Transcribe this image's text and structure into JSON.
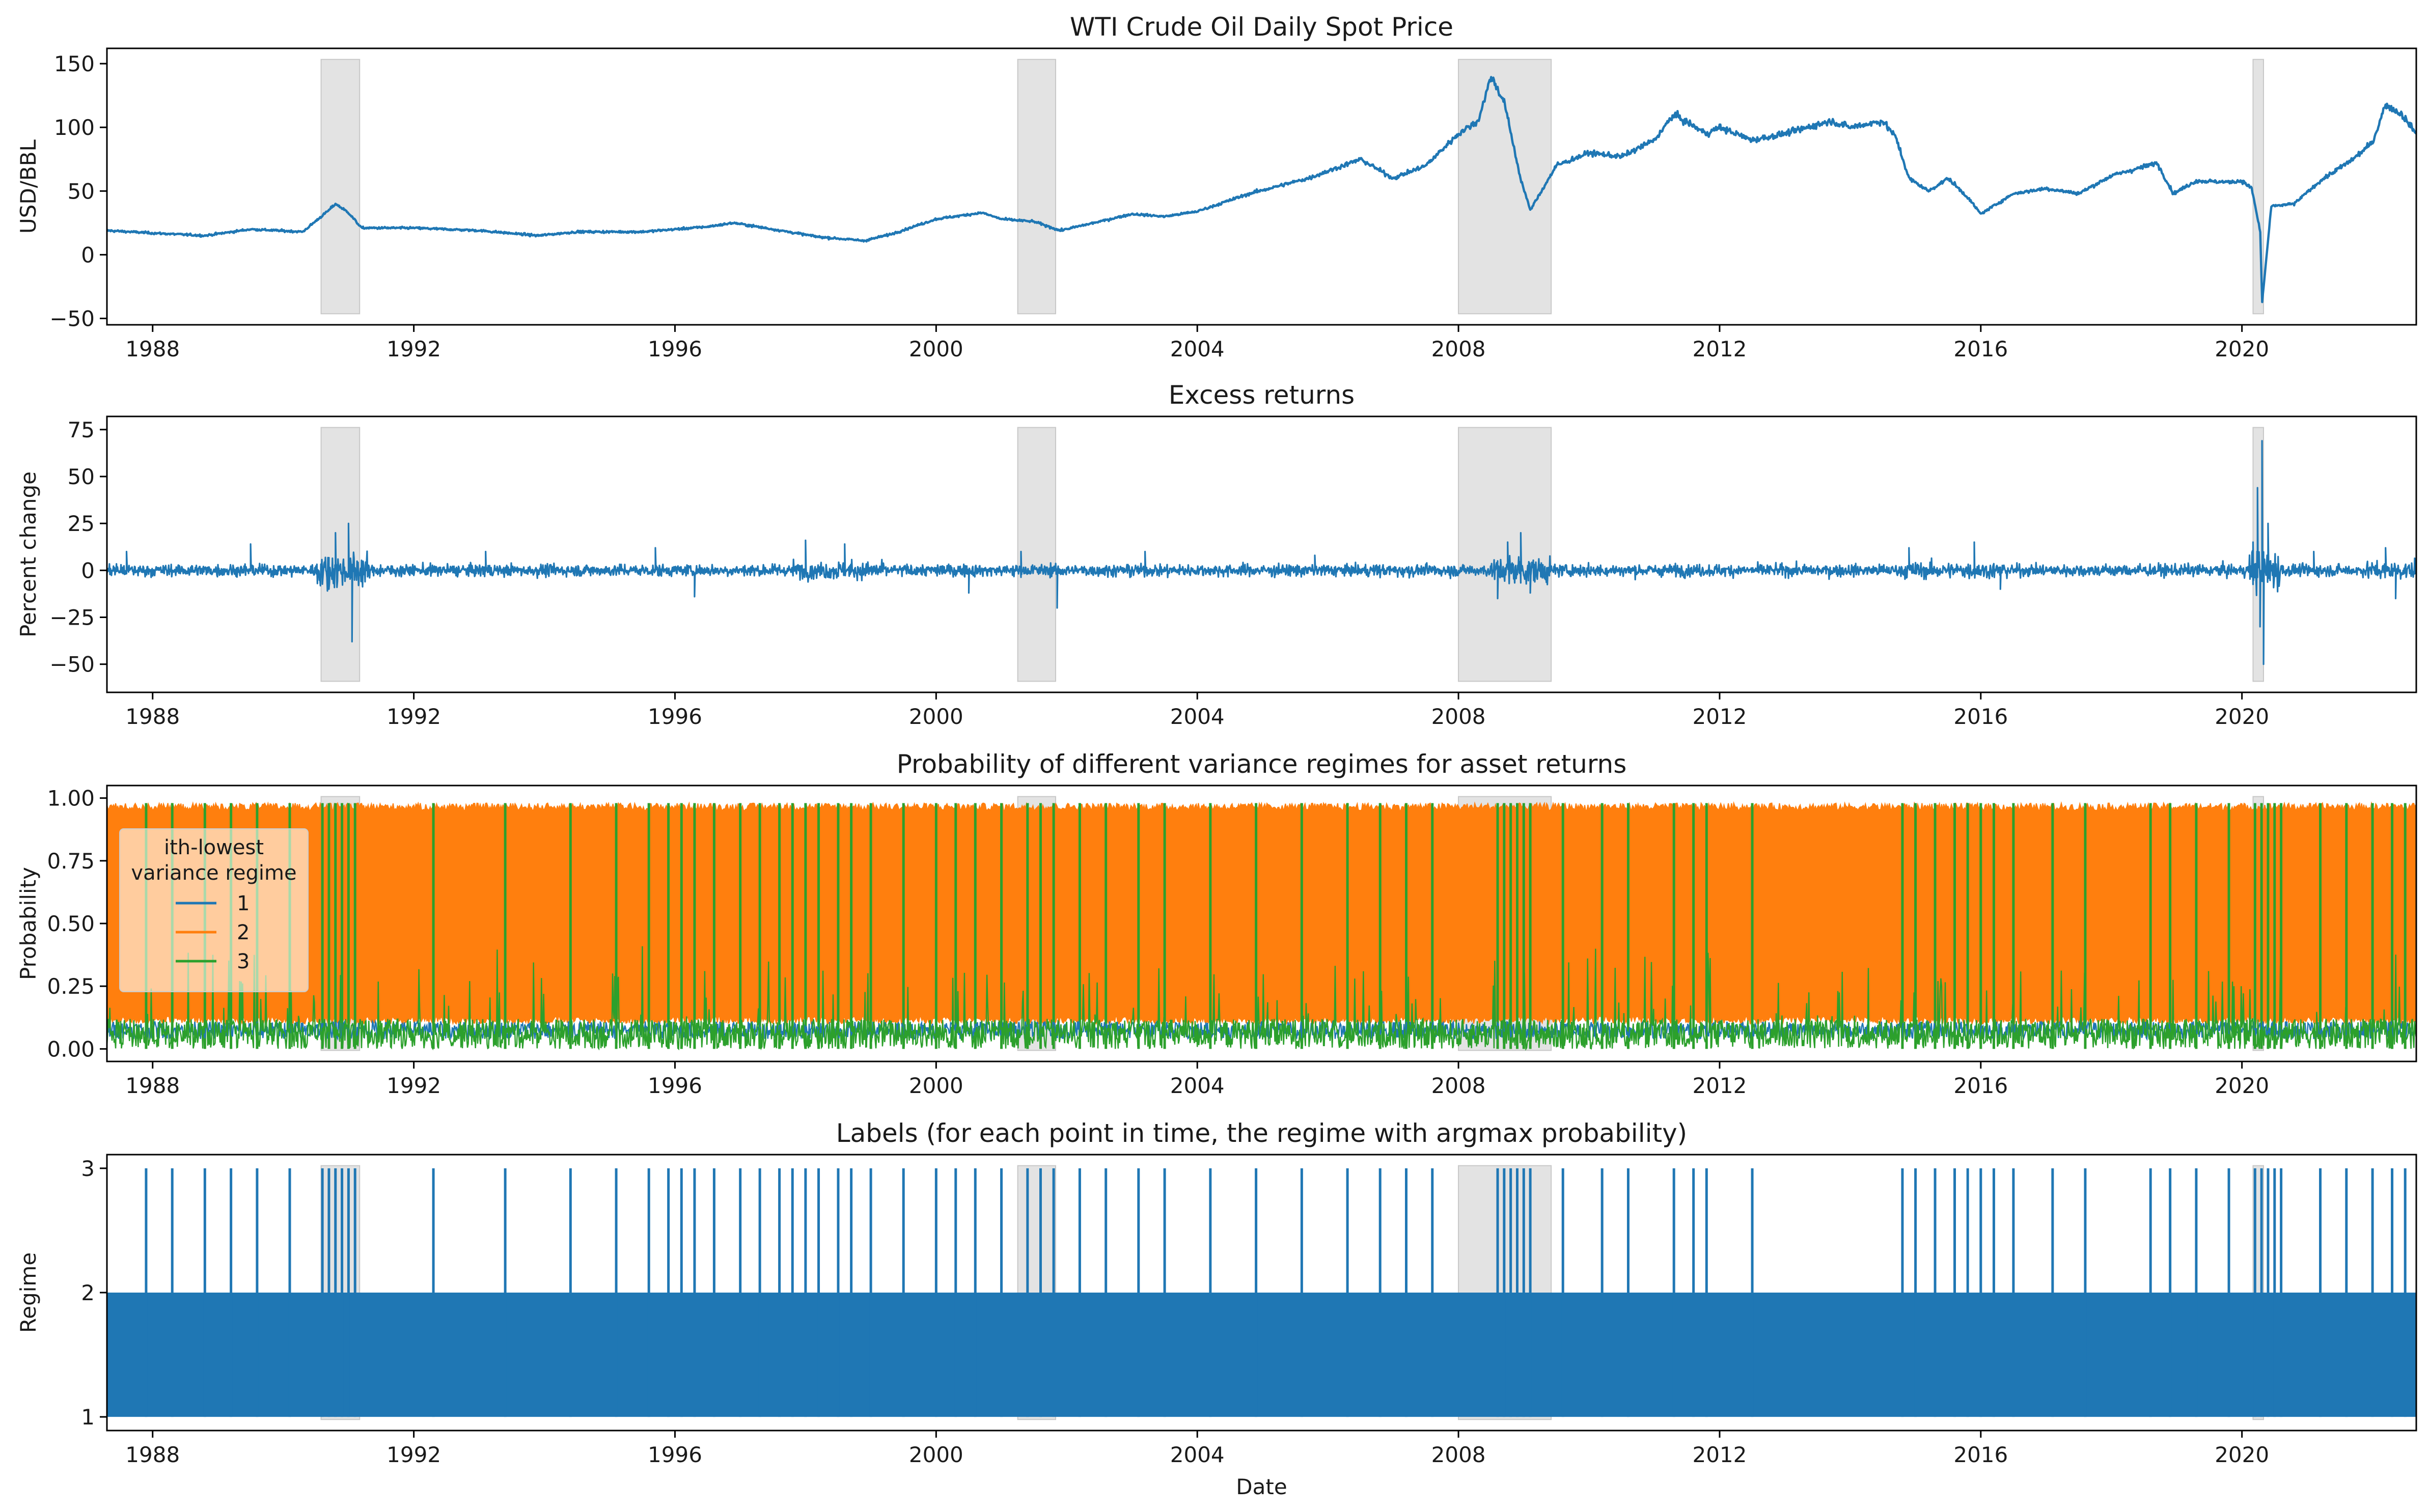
{
  "colors": {
    "series_1": "#1f77b4",
    "series_2": "#ff7f0e",
    "series_3": "#2ca02c",
    "recession": "#d9d9d9",
    "axis": "#000000",
    "background": "#ffffff"
  },
  "figure": {
    "x_axis_label": "Date"
  },
  "recessions": [
    {
      "start": 1990.58,
      "end": 1991.17
    },
    {
      "start": 2001.25,
      "end": 2001.83
    },
    {
      "start": 2008.0,
      "end": 2009.42
    },
    {
      "start": 2020.17,
      "end": 2020.33
    }
  ],
  "chart_data": [
    {
      "type": "line",
      "title": "WTI Crude Oil Daily Spot Price",
      "ylabel": "USD/BBL",
      "xlabel": "",
      "xlim": [
        1987.3,
        2022.67
      ],
      "ylim": [
        -55,
        162
      ],
      "xticks": [
        "1988",
        "1992",
        "1996",
        "2000",
        "2004",
        "2008",
        "2012",
        "2016",
        "2020"
      ],
      "yticks": [
        "−50",
        "0",
        "50",
        "100",
        "150"
      ],
      "grid": false,
      "x": [
        1987.3,
        1988.0,
        1988.8,
        1989.5,
        1990.3,
        1990.7,
        1990.8,
        1991.0,
        1991.2,
        1992.0,
        1993.0,
        1993.9,
        1994.5,
        1995.5,
        1996.5,
        1996.9,
        1997.5,
        1998.2,
        1998.9,
        1999.3,
        2000.0,
        2000.7,
        2001.0,
        2001.5,
        2001.9,
        2002.5,
        2003.0,
        2003.5,
        2004.0,
        2004.8,
        2005.7,
        2006.5,
        2007.0,
        2007.5,
        2008.0,
        2008.3,
        2008.5,
        2008.7,
        2008.95,
        2009.1,
        2009.5,
        2010.0,
        2010.5,
        2011.0,
        2011.3,
        2011.8,
        2012.0,
        2012.5,
        2013.0,
        2013.7,
        2014.0,
        2014.5,
        2014.7,
        2014.9,
        2015.2,
        2015.5,
        2015.8,
        2016.0,
        2016.5,
        2017.0,
        2017.5,
        2018.0,
        2018.7,
        2018.95,
        2019.3,
        2019.8,
        2020.0,
        2020.15,
        2020.28,
        2020.31,
        2020.45,
        2020.8,
        2021.2,
        2021.7,
        2022.0,
        2022.2,
        2022.45,
        2022.67
      ],
      "series": [
        {
          "values": [
            19,
            17,
            15,
            20,
            18,
            35,
            40,
            33,
            21,
            21,
            19,
            15,
            18,
            18,
            22,
            25,
            20,
            14,
            11,
            16,
            28,
            33,
            28,
            26,
            19,
            26,
            32,
            30,
            34,
            48,
            60,
            75,
            60,
            70,
            95,
            105,
            140,
            120,
            60,
            35,
            70,
            80,
            77,
            90,
            110,
            95,
            100,
            90,
            95,
            105,
            100,
            105,
            92,
            60,
            50,
            60,
            45,
            32,
            48,
            52,
            48,
            62,
            72,
            48,
            58,
            57,
            58,
            52,
            18,
            -37,
            38,
            40,
            58,
            75,
            88,
            118,
            110,
            95
          ]
        }
      ]
    },
    {
      "type": "line",
      "title": "Excess returns",
      "ylabel": "Percent change",
      "xlabel": "",
      "xlim": [
        1987.3,
        2022.67
      ],
      "ylim": [
        -65,
        82
      ],
      "xticks": [
        "1988",
        "1992",
        "1996",
        "2000",
        "2004",
        "2008",
        "2012",
        "2016",
        "2020"
      ],
      "yticks": [
        "−50",
        "−25",
        "0",
        "25",
        "50",
        "75"
      ],
      "grid": false,
      "x": [
        1987.6,
        1989.5,
        1990.7,
        1990.8,
        1991.0,
        1991.05,
        1993.1,
        1995.7,
        1996.3,
        1998.0,
        1998.6,
        2000.5,
        2001.3,
        2001.85,
        2003.2,
        2005.8,
        2008.6,
        2008.75,
        2008.95,
        2009.1,
        2014.9,
        2015.9,
        2016.3,
        2020.17,
        2020.24,
        2020.28,
        2020.31,
        2020.33,
        2020.4,
        2021.1,
        2022.2,
        2022.35
      ],
      "series": [
        {
          "values": [
            10,
            14,
            -10,
            20,
            25,
            -38,
            10,
            12,
            -14,
            16,
            14,
            -12,
            10,
            -20,
            10,
            8,
            -15,
            15,
            20,
            -12,
            12,
            15,
            -10,
            15,
            44,
            -30,
            69,
            -50,
            25,
            10,
            12,
            -15
          ]
        }
      ]
    },
    {
      "type": "area",
      "title": "Probability of different variance regimes for asset returns",
      "ylabel": "Probability",
      "xlabel": "",
      "xlim": [
        1987.3,
        2022.67
      ],
      "ylim": [
        -0.05,
        1.05
      ],
      "xticks": [
        "1988",
        "1992",
        "1996",
        "2000",
        "2004",
        "2008",
        "2012",
        "2016",
        "2020"
      ],
      "yticks": [
        "0.00",
        "0.25",
        "0.50",
        "0.75",
        "1.00"
      ],
      "grid": false,
      "legend": {
        "title": "ith-lowest\nvariance regime",
        "placement": "upper-left",
        "entries": [
          "1",
          "2",
          "3"
        ]
      },
      "series": [
        {
          "name": "1",
          "values": [
            0.02,
            0.12
          ]
        },
        {
          "name": "2",
          "values": [
            0.12,
            0.98
          ]
        },
        {
          "name": "3",
          "values": [
            0.0,
            1.0
          ]
        }
      ],
      "regime3_spikes": [
        1987.9,
        1988.3,
        1988.8,
        1989.2,
        1989.6,
        1990.1,
        1990.6,
        1990.7,
        1990.8,
        1990.9,
        1991.0,
        1991.1,
        1992.3,
        1993.4,
        1994.4,
        1995.1,
        1995.6,
        1995.9,
        1996.1,
        1996.3,
        1996.6,
        1997.0,
        1997.3,
        1997.6,
        1997.8,
        1998.0,
        1998.2,
        1998.5,
        1998.7,
        1999.0,
        1999.5,
        2000.0,
        2000.3,
        2000.6,
        2001.0,
        2001.4,
        2001.6,
        2001.8,
        2002.2,
        2002.6,
        2003.1,
        2003.5,
        2004.2,
        2004.9,
        2005.6,
        2006.3,
        2006.8,
        2007.2,
        2007.6,
        2008.6,
        2008.7,
        2008.8,
        2008.9,
        2009.0,
        2009.1,
        2009.6,
        2010.2,
        2010.6,
        2011.3,
        2011.6,
        2011.8,
        2012.5,
        2014.8,
        2015.0,
        2015.3,
        2015.6,
        2015.8,
        2016.0,
        2016.2,
        2016.5,
        2017.1,
        2017.6,
        2018.6,
        2018.9,
        2019.3,
        2019.8,
        2020.2,
        2020.3,
        2020.4,
        2020.5,
        2020.6,
        2021.2,
        2021.6,
        2022.0,
        2022.3,
        2022.5
      ]
    },
    {
      "type": "line",
      "title": "Labels (for each point in time, the regime with argmax probability)",
      "ylabel": "Regime",
      "xlabel": "Date",
      "xlim": [
        1987.3,
        2022.67
      ],
      "ylim": [
        0.89,
        3.11
      ],
      "xticks": [
        "1988",
        "1992",
        "1996",
        "2000",
        "2004",
        "2008",
        "2012",
        "2016",
        "2020"
      ],
      "yticks": [
        "1",
        "2",
        "3"
      ],
      "grid": false,
      "series": [
        {
          "values": [
            1,
            2,
            3
          ]
        }
      ],
      "regime3_spikes": [
        1987.9,
        1988.3,
        1988.8,
        1989.2,
        1989.6,
        1990.1,
        1990.6,
        1990.7,
        1990.8,
        1990.9,
        1991.0,
        1991.1,
        1992.3,
        1993.4,
        1994.4,
        1995.1,
        1995.6,
        1995.9,
        1996.1,
        1996.3,
        1996.6,
        1997.0,
        1997.3,
        1997.6,
        1997.8,
        1998.0,
        1998.2,
        1998.5,
        1998.7,
        1999.0,
        1999.5,
        2000.0,
        2000.3,
        2000.6,
        2001.0,
        2001.4,
        2001.6,
        2001.8,
        2002.2,
        2002.6,
        2003.1,
        2003.5,
        2004.2,
        2004.9,
        2005.6,
        2006.3,
        2006.8,
        2007.2,
        2007.6,
        2008.6,
        2008.7,
        2008.8,
        2008.9,
        2009.0,
        2009.1,
        2009.6,
        2010.2,
        2010.6,
        2011.3,
        2011.6,
        2011.8,
        2012.5,
        2014.8,
        2015.0,
        2015.3,
        2015.6,
        2015.8,
        2016.0,
        2016.2,
        2016.5,
        2017.1,
        2017.6,
        2018.6,
        2018.9,
        2019.3,
        2019.8,
        2020.2,
        2020.3,
        2020.4,
        2020.5,
        2020.6,
        2021.2,
        2021.6,
        2022.0,
        2022.3,
        2022.5
      ]
    }
  ]
}
